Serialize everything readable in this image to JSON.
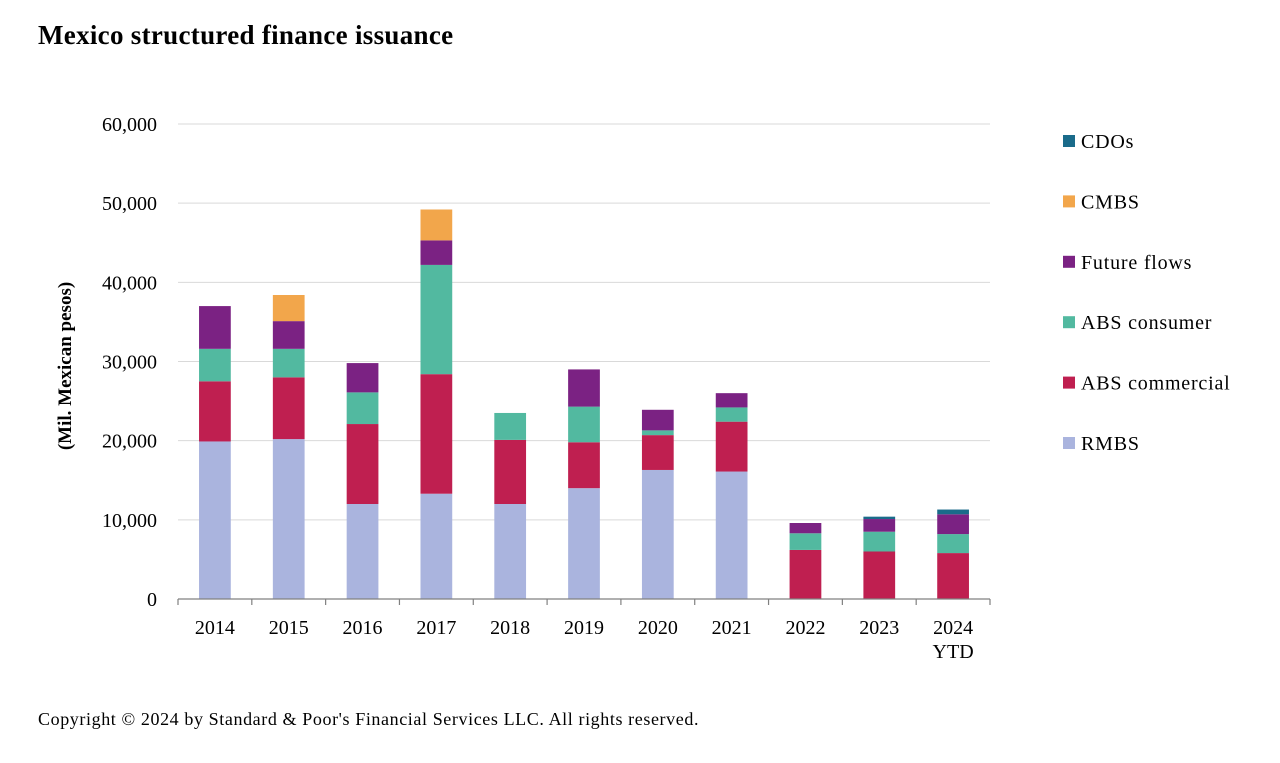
{
  "title": "Mexico structured finance issuance",
  "copyright": "Copyright © 2024 by Standard & Poor's Financial Services LLC. All rights reserved.",
  "chart_data": {
    "type": "bar",
    "stacked": true,
    "title": "Mexico structured finance issuance",
    "ylabel": "(Mil. Mexican pesos)",
    "xlabel": "",
    "ylim": [
      0,
      60000
    ],
    "yticks": [
      0,
      10000,
      20000,
      30000,
      40000,
      50000,
      60000
    ],
    "ytick_labels": [
      "0",
      "10,000",
      "20,000",
      "30,000",
      "40,000",
      "50,000",
      "60,000"
    ],
    "grid": true,
    "legend_position": "right",
    "categories": [
      "2014",
      "2015",
      "2016",
      "2017",
      "2018",
      "2019",
      "2020",
      "2021",
      "2022",
      "2023",
      "2024 YTD"
    ],
    "series": [
      {
        "name": "RMBS",
        "color": "#aab4de",
        "values": [
          19900,
          20200,
          12000,
          13300,
          12000,
          14000,
          16300,
          16100,
          0,
          0,
          0
        ]
      },
      {
        "name": "ABS commercial",
        "color": "#bf1f50",
        "values": [
          7600,
          7800,
          10100,
          15100,
          8100,
          5800,
          4400,
          6300,
          6200,
          6000,
          5800
        ]
      },
      {
        "name": "ABS consumer",
        "color": "#52b9a0",
        "values": [
          4100,
          3600,
          4000,
          13800,
          3400,
          4500,
          600,
          1800,
          2100,
          2500,
          2400
        ]
      },
      {
        "name": "Future flows",
        "color": "#7b2283",
        "values": [
          5400,
          3500,
          3700,
          3100,
          0,
          4700,
          2600,
          1800,
          1300,
          1600,
          2500
        ]
      },
      {
        "name": "CMBS",
        "color": "#f2a64b",
        "values": [
          0,
          3300,
          0,
          3900,
          0,
          0,
          0,
          0,
          0,
          0,
          0
        ]
      },
      {
        "name": "CDOs",
        "color": "#1a6b8a",
        "values": [
          0,
          0,
          0,
          0,
          0,
          0,
          0,
          0,
          0,
          300,
          600
        ]
      }
    ],
    "legend_order": [
      "CDOs",
      "CMBS",
      "Future flows",
      "ABS consumer",
      "ABS commercial",
      "RMBS"
    ]
  }
}
